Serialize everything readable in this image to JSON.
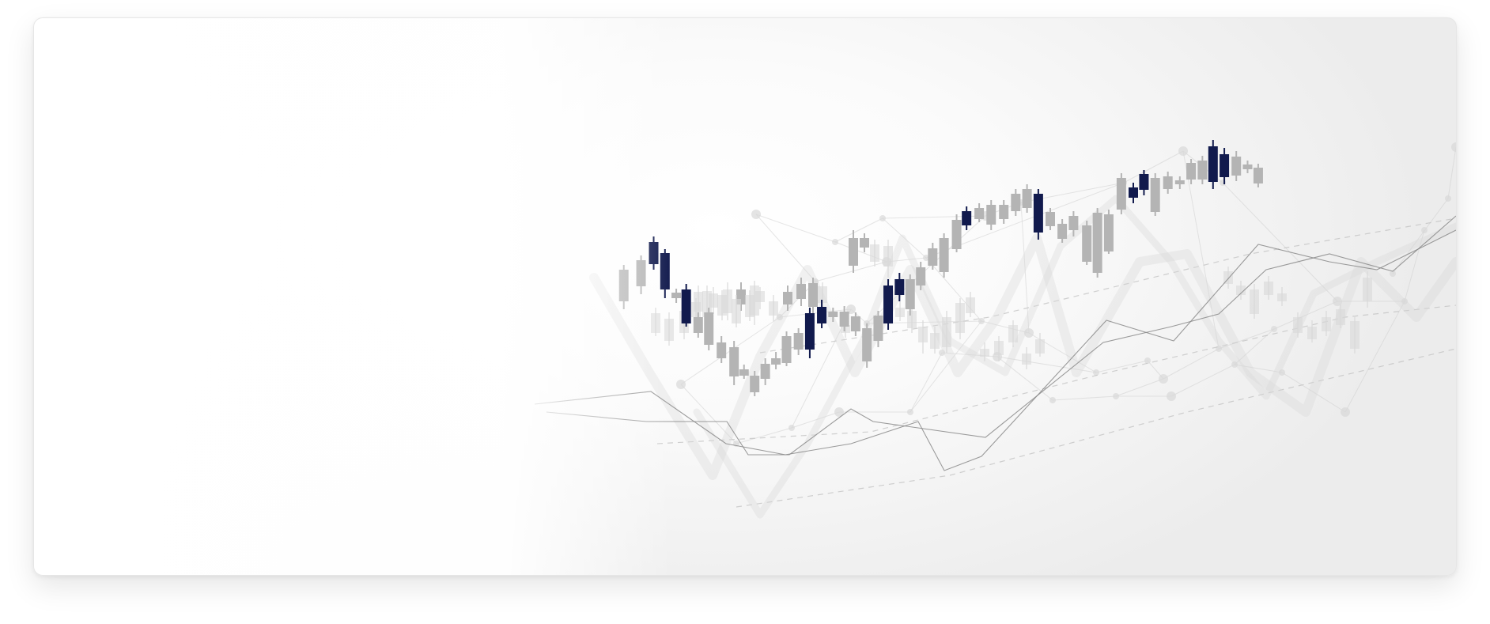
{
  "banner": {
    "kind": "decorative-stock-chart-illustration",
    "colors": {
      "accent": "#111a4d",
      "neutral": "#b4b4b4",
      "faint": "#d9d9d9",
      "line": "#8a8a8a"
    }
  }
}
